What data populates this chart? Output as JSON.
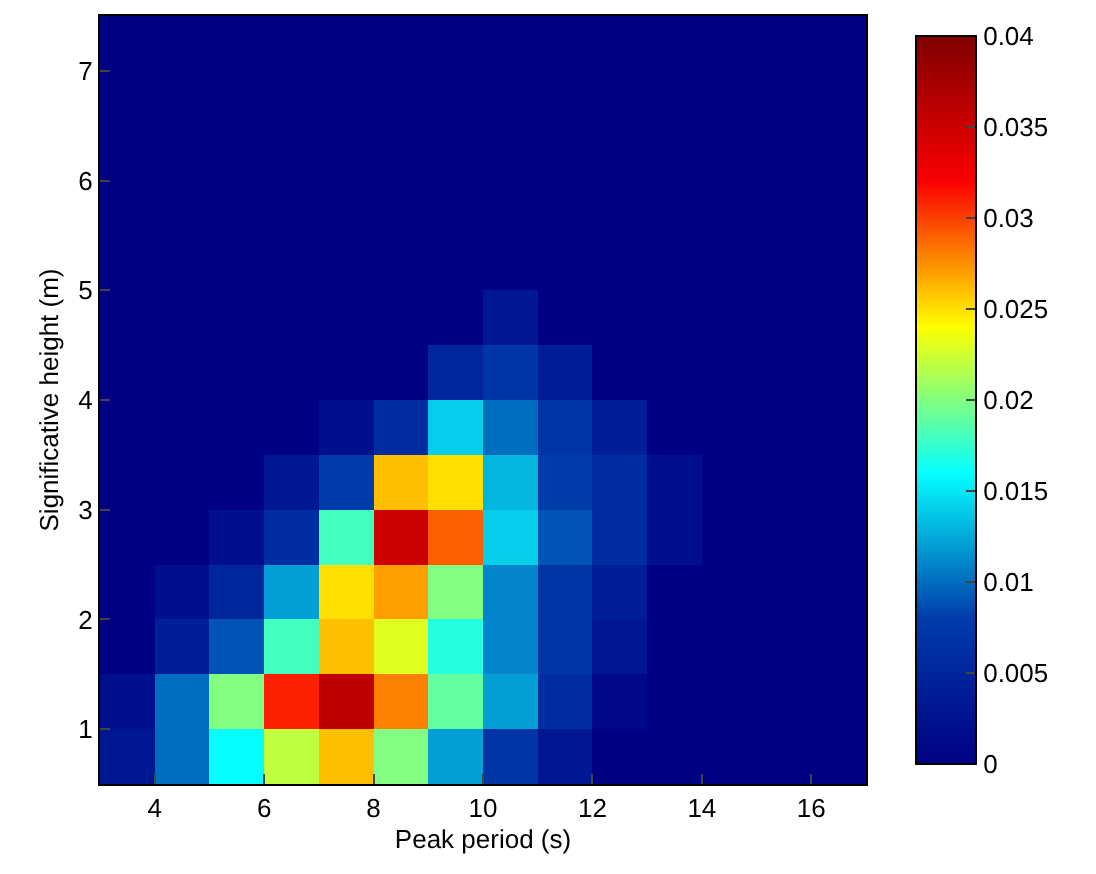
{
  "chart_data": {
    "type": "heatmap",
    "xlabel": "Peak period (s)",
    "ylabel": "Significative height (m)",
    "x": [
      3.5,
      4.5,
      5.5,
      6.5,
      7.5,
      8.5,
      9.5,
      10.5,
      11.5,
      12.5,
      13.5,
      14.5,
      15.5,
      16.5
    ],
    "y": [
      7.25,
      6.75,
      6.25,
      5.75,
      5.25,
      4.75,
      4.25,
      3.75,
      3.25,
      2.75,
      2.25,
      1.75,
      1.25,
      0.75
    ],
    "cells": [
      [
        0,
        0,
        0,
        0,
        0,
        0,
        0,
        0,
        0,
        0,
        0,
        0,
        0,
        0
      ],
      [
        0,
        0,
        0,
        0,
        0,
        0,
        0,
        0,
        0,
        0,
        0,
        0,
        0,
        0
      ],
      [
        0,
        0,
        0,
        0,
        0,
        0,
        0,
        0,
        0,
        0,
        0,
        0,
        0,
        0
      ],
      [
        0,
        0,
        0,
        0,
        0,
        0,
        0,
        0,
        0,
        0,
        0,
        0,
        0,
        0
      ],
      [
        0,
        0,
        0,
        0,
        0,
        0,
        0,
        0,
        0,
        0,
        0,
        0,
        0,
        0
      ],
      [
        0,
        0,
        0,
        0,
        0,
        0,
        0,
        0.003,
        0,
        0,
        0,
        0,
        0,
        0
      ],
      [
        0,
        0,
        0,
        0,
        0,
        0,
        0.005,
        0.007,
        0.004,
        0,
        0,
        0,
        0,
        0
      ],
      [
        0,
        0,
        0,
        0,
        0.002,
        0.006,
        0.014,
        0.01,
        0.007,
        0.004,
        0,
        0,
        0,
        0
      ],
      [
        0,
        0,
        0,
        0.003,
        0.008,
        0.026,
        0.025,
        0.013,
        0.008,
        0.006,
        0.002,
        0,
        0,
        0
      ],
      [
        0,
        0,
        0.002,
        0.006,
        0.018,
        0.035,
        0.029,
        0.014,
        0.009,
        0.006,
        0.002,
        0,
        0,
        0
      ],
      [
        0,
        0.002,
        0.005,
        0.012,
        0.025,
        0.027,
        0.02,
        0.011,
        0.007,
        0.004,
        0,
        0,
        0,
        0
      ],
      [
        0,
        0.004,
        0.009,
        0.018,
        0.026,
        0.023,
        0.017,
        0.011,
        0.007,
        0.003,
        0,
        0,
        0,
        0
      ],
      [
        0.002,
        0.01,
        0.02,
        0.031,
        0.036,
        0.028,
        0.019,
        0.012,
        0.006,
        0.001,
        0,
        0,
        0,
        0
      ],
      [
        0.003,
        0.01,
        0.016,
        0.022,
        0.026,
        0.02,
        0.012,
        0.007,
        0.003,
        0,
        0,
        0,
        0,
        0
      ]
    ],
    "xlim": [
      3,
      17
    ],
    "ylim": [
      0.5,
      7.5
    ],
    "xticks": [
      4,
      6,
      8,
      10,
      12,
      14,
      16
    ],
    "yticks": [
      1,
      2,
      3,
      4,
      5,
      6,
      7
    ],
    "clim": [
      0,
      0.04
    ],
    "cticks": [
      0,
      0.005,
      0.01,
      0.015,
      0.02,
      0.025,
      0.03,
      0.035,
      0.04
    ]
  }
}
